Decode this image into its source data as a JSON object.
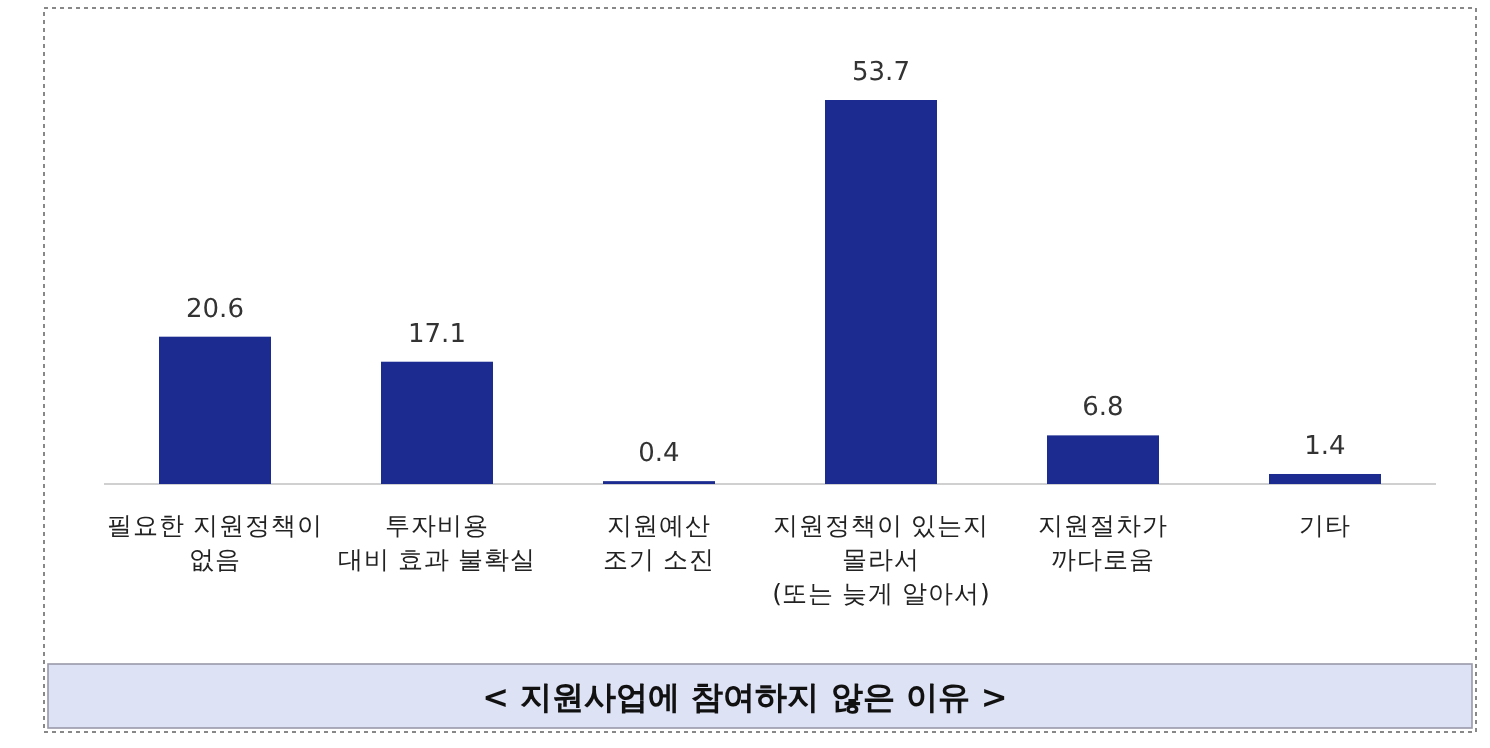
{
  "chart_data": {
    "type": "bar",
    "title": "< 지원사업에 참여하지 않은 이유 >",
    "categories": [
      "필요한 지원정책이\n없음",
      "투자비용\n대비 효과 불확실",
      "지원예산\n조기 소진",
      "지원정책이 있는지\n몰라서\n(또는 늦게 알아서)",
      "지원절차가\n까다로움",
      "기타"
    ],
    "values": [
      20.6,
      17.1,
      0.4,
      53.7,
      6.8,
      1.4
    ],
    "color": "#1b2b8f",
    "data_labels": true
  }
}
